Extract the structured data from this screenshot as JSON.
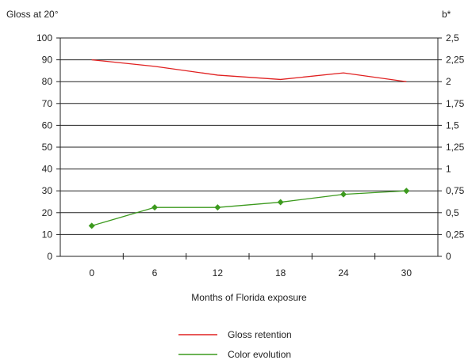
{
  "chart_data": {
    "type": "line",
    "x": [
      0,
      6,
      12,
      18,
      24,
      30
    ],
    "xlabel": "Months of Florida exposure",
    "ylabel_left": "Gloss at 20°",
    "ylabel_right": "b*",
    "ylim_left": [
      0,
      100
    ],
    "ylim_right": [
      0,
      2.5
    ],
    "yticks_left": [
      "0",
      "10",
      "20",
      "30",
      "40",
      "50",
      "60",
      "70",
      "80",
      "90",
      "100"
    ],
    "yticks_right": [
      "0",
      "0,25",
      "0,5",
      "0,75",
      "1",
      "1,25",
      "1,5",
      "1,75",
      "2",
      "2,25",
      "2,5"
    ],
    "xticks": [
      "0",
      "6",
      "12",
      "18",
      "24",
      "30"
    ],
    "grid": "horizontal",
    "legend_placement": "bottom",
    "series": [
      {
        "name": "Gloss retention",
        "axis": "left",
        "color": "#e02020",
        "marker": "none",
        "values": [
          90,
          87,
          83,
          81,
          84,
          80
        ]
      },
      {
        "name": "Color evolution",
        "axis": "right",
        "color": "#3c9a1e",
        "marker": "diamond",
        "values": [
          0.35,
          0.56,
          0.56,
          0.62,
          0.71,
          0.75
        ]
      }
    ]
  }
}
